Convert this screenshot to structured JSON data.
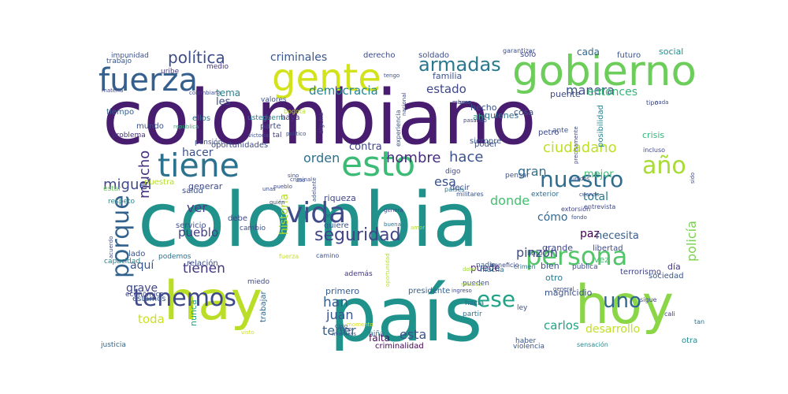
{
  "words": [
    {
      "text": "colombiano",
      "color": "#481c6e",
      "rotated": false
    },
    {
      "text": "colombia",
      "color": "#21918c",
      "rotated": false
    },
    {
      "text": "país",
      "color": "#20928c",
      "rotated": false
    },
    {
      "text": "hay",
      "color": "#bade28",
      "rotated": false
    },
    {
      "text": "hoy",
      "color": "#8bd646",
      "rotated": false
    },
    {
      "text": "gobierno",
      "color": "#6ccd5a",
      "rotated": false
    },
    {
      "text": "gente",
      "color": "#d2e21b",
      "rotated": false
    },
    {
      "text": "fuerza",
      "color": "#355f8d",
      "rotated": false
    },
    {
      "text": "tiene",
      "color": "#2c728e",
      "rotated": false
    },
    {
      "text": "esto",
      "color": "#3bbb75",
      "rotated": false
    },
    {
      "text": "vida",
      "color": "#3e4a89",
      "rotated": false
    },
    {
      "text": "persona",
      "color": "#52c569",
      "rotated": false
    },
    {
      "text": "año",
      "color": "#a8db34",
      "rotated": false
    },
    {
      "text": "tenemos",
      "color": "#3e4989",
      "rotated": false
    },
    {
      "text": "uno",
      "color": "#30678d",
      "rotated": false
    },
    {
      "text": "ese",
      "color": "#20a386",
      "rotated": false
    },
    {
      "text": "porque",
      "color": "#33638d",
      "rotated": true
    },
    {
      "text": "política",
      "color": "#3d4d8a",
      "rotated": false
    },
    {
      "text": "armadas",
      "color": "#2a788e",
      "rotated": false
    },
    {
      "text": "seguridad",
      "color": "#414487",
      "rotated": false
    },
    {
      "text": "nuestro",
      "color": "#2f6c8e",
      "rotated": false
    },
    {
      "text": "ciudadano",
      "color": "#bddf26",
      "rotated": false
    },
    {
      "text": "criminales",
      "color": "#39568c",
      "rotated": false
    },
    {
      "text": "democracia",
      "color": "#25848e",
      "rotated": false
    },
    {
      "text": "estado",
      "color": "#3f4788",
      "rotated": false
    },
    {
      "text": "manera",
      "color": "#3b528b",
      "rotated": false
    },
    {
      "text": "entonces",
      "color": "#35b779",
      "rotated": false
    },
    {
      "text": "hombre",
      "color": "#472d7b",
      "rotated": false
    },
    {
      "text": "hace",
      "color": "#3b528b",
      "rotated": false
    },
    {
      "text": "gran",
      "color": "#2e6e8e",
      "rotated": false
    },
    {
      "text": "esa",
      "color": "#3a538b",
      "rotated": false
    },
    {
      "text": "donde",
      "color": "#44bf70",
      "rotated": false
    },
    {
      "text": "orden",
      "color": "#2d708e",
      "rotated": false
    },
    {
      "text": "contra",
      "color": "#414487",
      "rotated": false
    },
    {
      "text": "hacer",
      "color": "#3b528b",
      "rotated": false
    },
    {
      "text": "miguel",
      "color": "#3f4889",
      "rotated": false
    },
    {
      "text": "mucho",
      "color": "#46327e",
      "rotated": true
    },
    {
      "text": "ver",
      "color": "#424086",
      "rotated": false
    },
    {
      "text": "pueblo",
      "color": "#433e85",
      "rotated": false
    },
    {
      "text": "historia",
      "color": "#b5de2b",
      "rotated": true
    },
    {
      "text": "tienen",
      "color": "#453781",
      "rotated": false
    },
    {
      "text": "aquí",
      "color": "#3a548c",
      "rotated": false
    },
    {
      "text": "pinzón",
      "color": "#3e4c8a",
      "rotated": false
    },
    {
      "text": "puede",
      "color": "#482878",
      "rotated": false
    },
    {
      "text": "policía",
      "color": "#7ad151",
      "rotated": true
    },
    {
      "text": "cómo",
      "color": "#31688e",
      "rotated": false
    },
    {
      "text": "paz",
      "color": "#440154",
      "rotated": false
    },
    {
      "text": "necesita",
      "color": "#365c8d",
      "rotated": false
    },
    {
      "text": "total",
      "color": "#2a778e",
      "rotated": false
    },
    {
      "text": "mejor",
      "color": "#40bd72",
      "rotated": false
    },
    {
      "text": "grave",
      "color": "#3f4788",
      "rotated": false
    },
    {
      "text": "toda",
      "color": "#cae11f",
      "rotated": false
    },
    {
      "text": "han",
      "color": "#355f8d",
      "rotated": false
    },
    {
      "text": "juan",
      "color": "#3a548c",
      "rotated": false
    },
    {
      "text": "tener",
      "color": "#34618d",
      "rotated": false
    },
    {
      "text": "falta",
      "color": "#46085c",
      "rotated": false
    },
    {
      "text": "esta",
      "color": "#3b528b",
      "rotated": false
    },
    {
      "text": "carlos",
      "color": "#20a486",
      "rotated": false
    },
    {
      "text": "desarrollo",
      "color": "#c2df23",
      "rotated": false
    },
    {
      "text": "magnicidio",
      "color": "#3b518b",
      "rotated": false
    },
    {
      "text": "otro",
      "color": "#287d8e",
      "rotated": false
    },
    {
      "text": "primero",
      "color": "#375b8d",
      "rotated": false
    },
    {
      "text": "bien",
      "color": "#3c508b",
      "rotated": false
    },
    {
      "text": "grande",
      "color": "#3f4788",
      "rotated": false
    },
    {
      "text": "libertad",
      "color": "#3e4c8a",
      "rotated": false
    },
    {
      "text": "vez",
      "color": "#48c16e",
      "rotated": false
    },
    {
      "text": "día",
      "color": "#443983",
      "rotated": false
    },
    {
      "text": "sociedad",
      "color": "#3a548c",
      "rotated": false
    },
    {
      "text": "terrorismo",
      "color": "#414487",
      "rotated": false
    },
    {
      "text": "estamos",
      "color": "#39558c",
      "rotated": false
    },
    {
      "text": "relación",
      "color": "#3d4e8a",
      "rotated": false
    },
    {
      "text": "nunca",
      "color": "#21a685",
      "rotated": true
    },
    {
      "text": "trabajar",
      "color": "#31678e",
      "rotated": true
    },
    {
      "text": "presidente",
      "color": "#34608d",
      "rotated": false
    },
    {
      "text": "pueden",
      "color": "#3e4c8a",
      "rotated": false
    },
    {
      "text": "hacia",
      "color": "#2c718e",
      "rotated": false
    },
    {
      "text": "partir",
      "color": "#2d708e",
      "rotated": false
    },
    {
      "text": "además",
      "color": "#453581",
      "rotated": false
    },
    {
      "text": "nadie",
      "color": "#365d8d",
      "rotated": false
    },
    {
      "text": "mucha",
      "color": "#2e6f8e",
      "rotated": false
    },
    {
      "text": "sigue",
      "color": "#3e4a89",
      "rotated": false
    },
    {
      "text": "cali",
      "color": "#424186",
      "rotated": false
    },
    {
      "text": "tan",
      "color": "#2b748e",
      "rotated": false
    },
    {
      "text": "otra",
      "color": "#238a8d",
      "rotated": false
    },
    {
      "text": "ley",
      "color": "#3b528b",
      "rotated": false
    },
    {
      "text": "haber",
      "color": "#39568c",
      "rotated": false
    },
    {
      "text": "violencia",
      "color": "#3a538b",
      "rotated": false
    },
    {
      "text": "sensación",
      "color": "#23898e",
      "rotated": false
    },
    {
      "text": "criminalidad",
      "color": "#440154",
      "rotated": false
    },
    {
      "text": "niña",
      "color": "#2e6f8e",
      "rotated": false
    },
    {
      "text": "justicia",
      "color": "#31678e",
      "rotated": false
    },
    {
      "text": "impunidad",
      "color": "#3b518b",
      "rotated": false
    },
    {
      "text": "trabajo",
      "color": "#39568c",
      "rotated": false
    },
    {
      "text": "medio",
      "color": "#46337f",
      "rotated": false
    },
    {
      "text": "uribe",
      "color": "#453882",
      "rotated": false
    },
    {
      "text": "colombiana",
      "color": "#3e4a89",
      "rotated": false
    },
    {
      "text": "materia",
      "color": "#3e4989",
      "rotated": false
    },
    {
      "text": "tiempo",
      "color": "#34618d",
      "rotated": false
    },
    {
      "text": "mundo",
      "color": "#3c508b",
      "rotated": false
    },
    {
      "text": "problema",
      "color": "#46307e",
      "rotated": false
    },
    {
      "text": "república",
      "color": "#2db27d",
      "rotated": false
    },
    {
      "text": "ellos",
      "color": "#2d708e",
      "rotated": false
    },
    {
      "text": "pensión",
      "color": "#3e4a89",
      "rotated": false
    },
    {
      "text": "tema",
      "color": "#25848e",
      "rotated": false
    },
    {
      "text": "les",
      "color": "#3e4c8a",
      "rotated": false
    },
    {
      "text": "valores",
      "color": "#3b528b",
      "rotated": false
    },
    {
      "text": "usted",
      "color": "#2c728e",
      "rotated": false
    },
    {
      "text": "guerra",
      "color": "#25858e",
      "rotated": false
    },
    {
      "text": "parte",
      "color": "#3e4c8a",
      "rotated": false
    },
    {
      "text": "bogotá",
      "color": "#b8de29",
      "rotated": false
    },
    {
      "text": "tal",
      "color": "#433d84",
      "rotated": false
    },
    {
      "text": "haya",
      "color": "#453781",
      "rotated": false
    },
    {
      "text": "alguna",
      "color": "#3f4788",
      "rotated": true
    },
    {
      "text": "derecho",
      "color": "#3e4a89",
      "rotated": false
    },
    {
      "text": "tengo",
      "color": "#3a538b",
      "rotated": false
    },
    {
      "text": "soldado",
      "color": "#3d4e8a",
      "rotated": false
    },
    {
      "text": "garantizar",
      "color": "#3c4f8a",
      "rotated": false
    },
    {
      "text": "solo",
      "color": "#3f4788",
      "rotated": false
    },
    {
      "text": "familia",
      "color": "#3b528b",
      "rotated": false
    },
    {
      "text": "cada",
      "color": "#31688e",
      "rotated": false
    },
    {
      "text": "futuro",
      "color": "#3b528b",
      "rotated": false
    },
    {
      "text": "social",
      "color": "#21908d",
      "rotated": false
    },
    {
      "text": "hecho",
      "color": "#3b528b",
      "rotated": false
    },
    {
      "text": "ahí",
      "color": "#25ab82",
      "rotated": false
    },
    {
      "text": "quienes",
      "color": "#2e6e8e",
      "rotated": false
    },
    {
      "text": "cosa",
      "color": "#3a538b",
      "rotated": false
    },
    {
      "text": "puente",
      "color": "#3e4a89",
      "rotated": false
    },
    {
      "text": "ante",
      "color": "#39558c",
      "rotated": false
    },
    {
      "text": "petro",
      "color": "#3f4788",
      "rotated": false
    },
    {
      "text": "siempre",
      "color": "#38588c",
      "rotated": false
    },
    {
      "text": "poder",
      "color": "#3b528b",
      "rotated": false
    },
    {
      "text": "posibilidad",
      "color": "#26828e",
      "rotated": true
    },
    {
      "text": "crisis",
      "color": "#35b779",
      "rotated": false
    },
    {
      "text": "incluso",
      "color": "#3f4788",
      "rotated": false
    },
    {
      "text": "digo",
      "color": "#3e4989",
      "rotated": false
    },
    {
      "text": "pensar",
      "color": "#3c508b",
      "rotated": false
    },
    {
      "text": "exterior",
      "color": "#2f6b8e",
      "rotated": false
    },
    {
      "text": "extorsión",
      "color": "#414287",
      "rotated": false
    },
    {
      "text": "decir",
      "color": "#3d4d8a",
      "rotated": false
    },
    {
      "text": "riqueza",
      "color": "#404588",
      "rotated": false
    },
    {
      "text": "quiere",
      "color": "#3a548c",
      "rotated": false
    },
    {
      "text": "debe",
      "color": "#3e4a89",
      "rotated": false
    },
    {
      "text": "cambio",
      "color": "#3b528b",
      "rotated": false
    },
    {
      "text": "servicio",
      "color": "#3e4c8a",
      "rotated": false
    },
    {
      "text": "salud",
      "color": "#3b528b",
      "rotated": false
    },
    {
      "text": "nuestra",
      "color": "#b5de2b",
      "rotated": false
    },
    {
      "text": "generar",
      "color": "#3e4989",
      "rotated": false
    },
    {
      "text": "estar",
      "color": "#6ccd5a",
      "rotated": false
    },
    {
      "text": "respeto",
      "color": "#238a8d",
      "rotated": false
    },
    {
      "text": "capacidad",
      "color": "#26828e",
      "rotated": false
    },
    {
      "text": "lado",
      "color": "#3b528b",
      "rotated": false
    },
    {
      "text": "podemos",
      "color": "#2d708e",
      "rotated": false
    },
    {
      "text": "económico",
      "color": "#3e4a89",
      "rotated": false
    },
    {
      "text": "miedo",
      "color": "#3e4989",
      "rotated": false
    },
    {
      "text": "camino",
      "color": "#3b528b",
      "rotated": false
    },
    {
      "text": "fuerza",
      "color": "#cae11f",
      "rotated": false
    },
    {
      "text": "libro",
      "color": "#3b528b",
      "rotated": false
    },
    {
      "text": "crimen",
      "color": "#2c738e",
      "rotated": false
    },
    {
      "text": "beneficio",
      "color": "#3e4989",
      "rotated": false
    },
    {
      "text": "pública",
      "color": "#3e4c8a",
      "rotated": false
    },
    {
      "text": "experiencia",
      "color": "#3b528b",
      "rotated": true
    },
    {
      "text": "nacional",
      "color": "#3e4a89",
      "rotated": true
    },
    {
      "text": "países",
      "color": "#2c738e",
      "rotated": false
    },
    {
      "text": "militares",
      "color": "#3a538b",
      "rotated": false
    },
    {
      "text": "ingreso",
      "color": "#3e4989",
      "rotated": false
    },
    {
      "text": "dolor",
      "color": "#9fda3a",
      "rotated": false
    },
    {
      "text": "general",
      "color": "#3b528b",
      "rotated": false
    },
    {
      "text": "momento",
      "color": "#d8e219",
      "rotated": false
    },
    {
      "text": "visto",
      "color": "#d2e21b",
      "rotated": false
    },
    {
      "text": "caso",
      "color": "#3b528b",
      "rotated": false
    },
    {
      "text": "creo",
      "color": "#3e4c8a",
      "rotated": false
    },
    {
      "text": "mientras",
      "color": "#38588c",
      "rotated": false
    },
    {
      "text": "oportunidades",
      "color": "#3e4a89",
      "rotated": false
    },
    {
      "text": "oportunidad",
      "color": "#b5de2b",
      "rotated": true
    },
    {
      "text": "recurso",
      "color": "#b5de2b",
      "rotated": false
    },
    {
      "text": "victoria",
      "color": "#3a538b",
      "rotated": false
    },
    {
      "text": "político",
      "color": "#3e4a89",
      "rotated": false
    },
    {
      "text": "sino",
      "color": "#3b528b",
      "rotated": false
    },
    {
      "text": "criminal",
      "color": "#3e4989",
      "rotated": false
    },
    {
      "text": "uso",
      "color": "#3b528b",
      "rotated": false
    },
    {
      "text": "unas",
      "color": "#3e4c8a",
      "rotated": false
    },
    {
      "text": "quién",
      "color": "#3e4a89",
      "rotated": false
    },
    {
      "text": "era",
      "color": "#3b528b",
      "rotated": false
    },
    {
      "text": "genera",
      "color": "#3e4989",
      "rotated": false
    },
    {
      "text": "buena",
      "color": "#2c738e",
      "rotated": false
    },
    {
      "text": "amor",
      "color": "#b5de2b",
      "rotated": false
    },
    {
      "text": "entrevista",
      "color": "#3e4a89",
      "rotated": false
    },
    {
      "text": "fondo",
      "color": "#3b528b",
      "rotated": false
    },
    {
      "text": "tipo",
      "color": "#3e4989",
      "rotated": false
    },
    {
      "text": "nada",
      "color": "#3e4a89",
      "rotated": false
    },
    {
      "text": "acuerdo",
      "color": "#3e4c8a",
      "rotated": true
    },
    {
      "text": "cuando",
      "color": "#3b528b",
      "rotated": false
    },
    {
      "text": "buen",
      "color": "#3e4a89",
      "rotated": false
    },
    {
      "text": "mismo",
      "color": "#3e4989",
      "rotated": false
    },
    {
      "text": "unidos",
      "color": "#3b528b",
      "rotated": false
    },
    {
      "text": "sido",
      "color": "#3e4a89",
      "rotated": true
    },
    {
      "text": "precisamente",
      "color": "#3e4989",
      "rotated": true
    },
    {
      "text": "adelante",
      "color": "#3b528b",
      "rotated": true
    },
    {
      "text": "pasando",
      "color": "#3e4a89",
      "rotated": false
    },
    {
      "text": "pueblo",
      "color": "#3e4989",
      "rotated": false
    }
  ]
}
